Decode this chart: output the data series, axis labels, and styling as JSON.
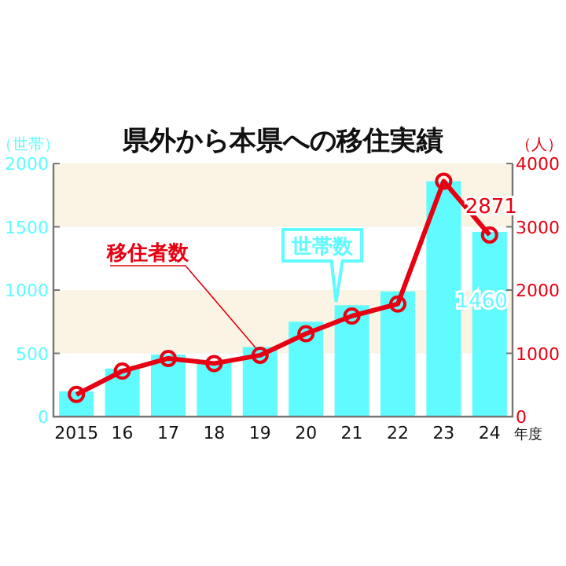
{
  "chart_data": {
    "type": "bar",
    "title": "県外から本県への移住実績",
    "xlabel": "年度",
    "ylabel": "（世帯）",
    "y2label": "（人）",
    "categories": [
      "2015",
      "16",
      "17",
      "18",
      "19",
      "20",
      "21",
      "22",
      "23",
      "24"
    ],
    "series": [
      {
        "name": "世帯数",
        "color": "#5ffbff",
        "values": [
          200,
          380,
          490,
          430,
          550,
          750,
          880,
          990,
          1860,
          1460
        ],
        "value_labels": [
          null,
          null,
          null,
          null,
          null,
          null,
          null,
          null,
          null,
          "1460"
        ]
      },
      {
        "name": "移住者数",
        "type": "line",
        "axis": "y2",
        "color": "#e60012",
        "marker": "circle",
        "values": [
          350,
          720,
          920,
          840,
          970,
          1310,
          1590,
          1780,
          3720,
          2871
        ],
        "value_labels": [
          null,
          null,
          null,
          null,
          null,
          null,
          null,
          null,
          null,
          "2871"
        ]
      }
    ],
    "ylim": [
      0,
      2000
    ],
    "yticks": [
      0,
      500,
      1000,
      1500,
      2000
    ],
    "y2lim": [
      0,
      4000
    ],
    "y2ticks": [
      0,
      1000,
      2000,
      3000,
      4000
    ],
    "bands": [
      {
        "axis": "y",
        "from": 500,
        "to": 1000,
        "color": "#fbf3e3"
      },
      {
        "axis": "y",
        "from": 1500,
        "to": 2000,
        "color": "#fbf3e3"
      }
    ]
  }
}
